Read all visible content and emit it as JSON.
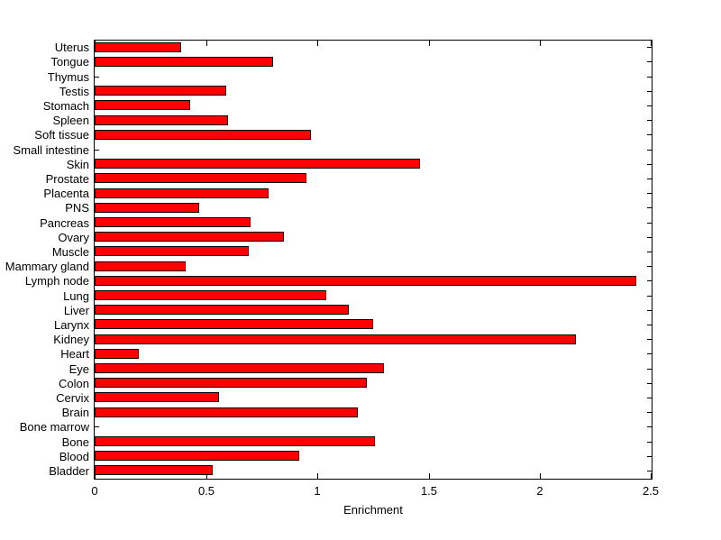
{
  "figure": {
    "background_color": "#ffffff",
    "axis_color": "#000000"
  },
  "chart_data": {
    "type": "bar",
    "orientation": "horizontal",
    "title": "",
    "xlabel": "Enrichment",
    "ylabel": "",
    "xlim": [
      0,
      2.5
    ],
    "xticks": [
      0,
      0.5,
      1,
      1.5,
      2,
      2.5
    ],
    "xtick_labels": [
      "0",
      "0.5",
      "1",
      "1.5",
      "2",
      "2.5"
    ],
    "grid": false,
    "legend_position": "none",
    "bar_color": "#ff0000",
    "bar_edge_color": "#000000",
    "categories": [
      "Uterus",
      "Tongue",
      "Thymus",
      "Testis",
      "Stomach",
      "Spleen",
      "Soft tissue",
      "Small intestine",
      "Skin",
      "Prostate",
      "Placenta",
      "PNS",
      "Pancreas",
      "Ovary",
      "Muscle",
      "Mammary gland",
      "Lymph node",
      "Lung",
      "Liver",
      "Larynx",
      "Kidney",
      "Heart",
      "Eye",
      "Colon",
      "Cervix",
      "Brain",
      "Bone marrow",
      "Bone",
      "Blood",
      "Bladder"
    ],
    "values": [
      0.39,
      0.8,
      0,
      0.59,
      0.43,
      0.6,
      0.97,
      0,
      1.46,
      0.95,
      0.78,
      0.47,
      0.7,
      0.85,
      0.69,
      0.41,
      2.43,
      1.04,
      1.14,
      1.25,
      2.16,
      0.2,
      1.3,
      1.22,
      0.56,
      1.18,
      0,
      1.26,
      0.92,
      0.53
    ]
  }
}
